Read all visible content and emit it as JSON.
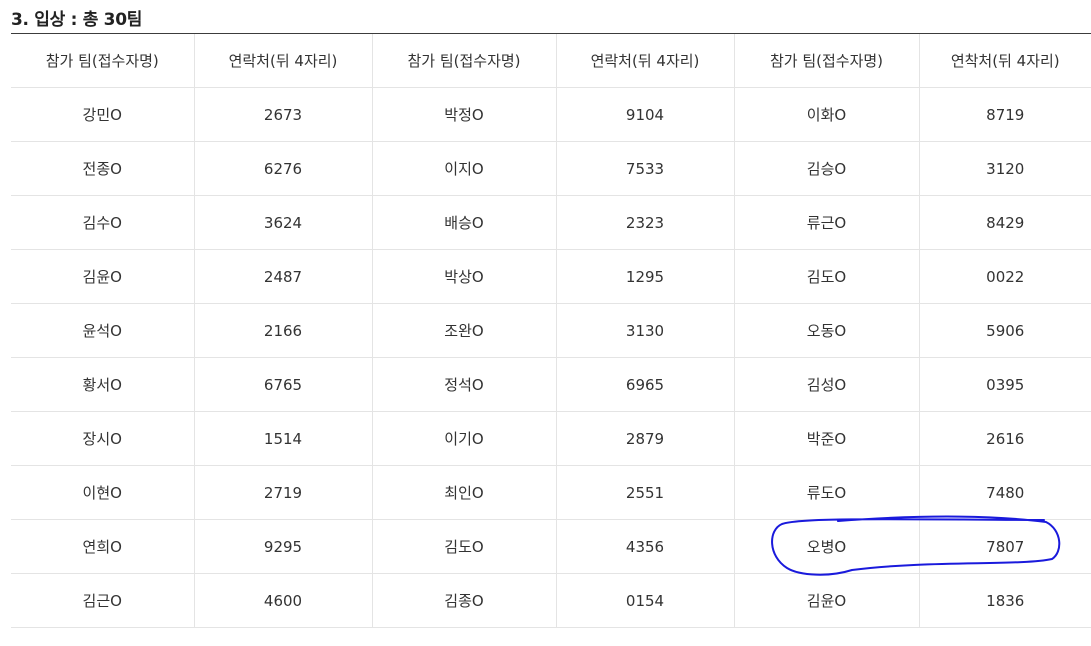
{
  "section": {
    "title": "3. 입상 : 총 30팀"
  },
  "table": {
    "headers": [
      "참가 팀(접수자명)",
      "연락처(뒤 4자리)",
      "참가 팀(접수자명)",
      "연락처(뒤 4자리)",
      "참가 팀(접수자명)",
      "연착처(뒤 4자리)"
    ],
    "rows": [
      [
        "강민O",
        "2673",
        "박정O",
        "9104",
        "이화O",
        "8719"
      ],
      [
        "전종O",
        "6276",
        "이지O",
        "7533",
        "김승O",
        "3120"
      ],
      [
        "김수O",
        "3624",
        "배승O",
        "2323",
        "류근O",
        "8429"
      ],
      [
        "김윤O",
        "2487",
        "박상O",
        "1295",
        "김도O",
        "0022"
      ],
      [
        "윤석O",
        "2166",
        "조완O",
        "3130",
        "오동O",
        "5906"
      ],
      [
        "황서O",
        "6765",
        "정석O",
        "6965",
        "김성O",
        "0395"
      ],
      [
        "장시O",
        "1514",
        "이기O",
        "2879",
        "박준O",
        "2616"
      ],
      [
        "이현O",
        "2719",
        "최인O",
        "2551",
        "류도O",
        "7480"
      ],
      [
        "연희O",
        "9295",
        "김도O",
        "4356",
        "오병O",
        "7807"
      ],
      [
        "김근O",
        "4600",
        "김종O",
        "0154",
        "김윤O",
        "1836"
      ]
    ]
  },
  "annotation": {
    "color": "#1a1adc",
    "shape": "hand-drawn-ellipse"
  }
}
